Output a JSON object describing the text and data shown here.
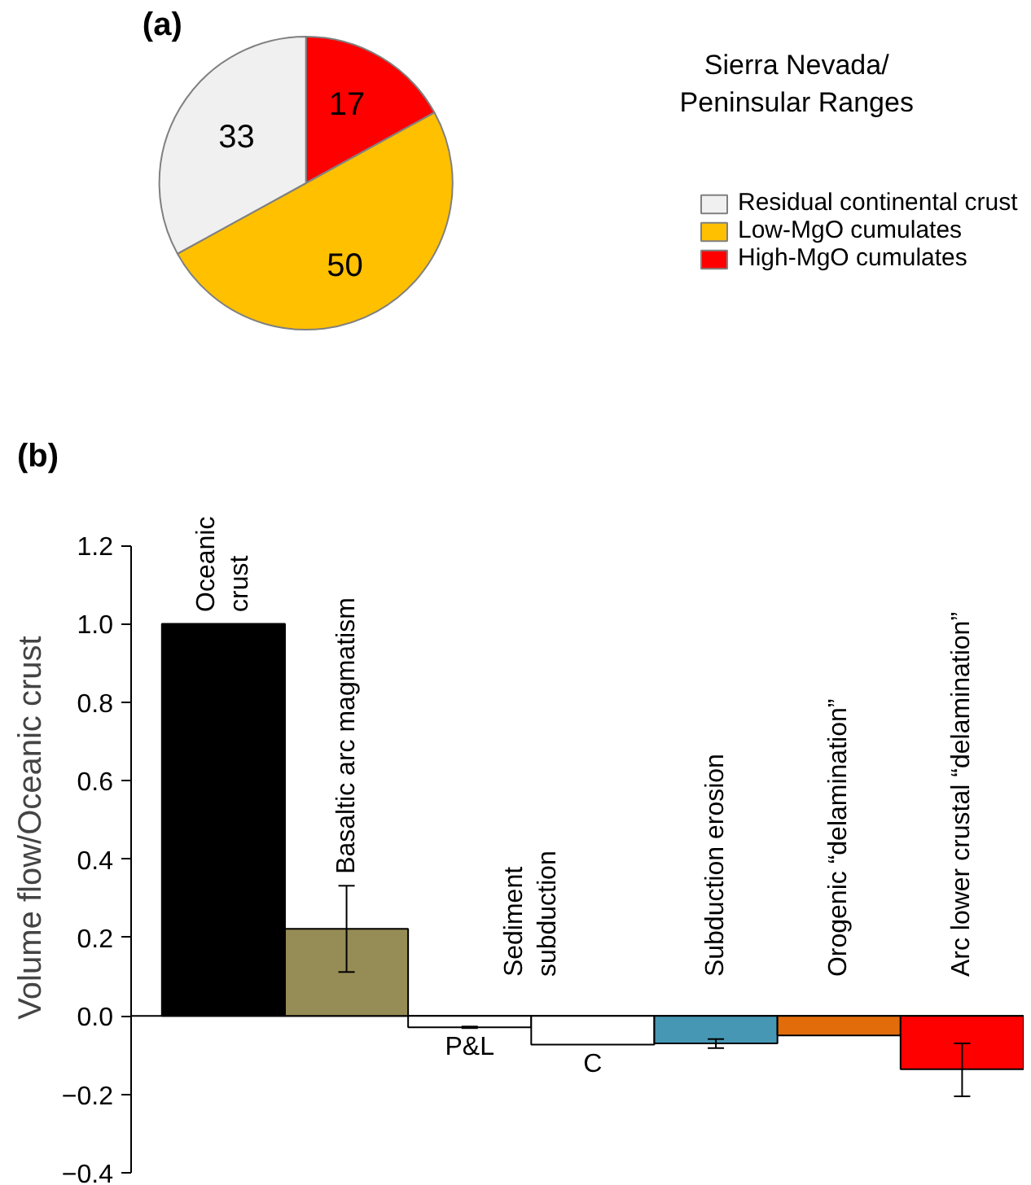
{
  "chart_data": [
    {
      "type": "pie",
      "categories": [
        "High-MgO cumulates",
        "Low-MgO cumulates",
        "Residual continental crust"
      ],
      "values": [
        17,
        50,
        33
      ],
      "colors": [
        "#ff0000",
        "#ffc000",
        "#f0f0f0"
      ],
      "data_labels": true,
      "legend": "right",
      "legend_title": "Sierra Nevada/\nPeninsular Ranges",
      "annotations": [
        "(a)"
      ]
    },
    {
      "type": "bar",
      "categories": [
        "Oceanic crust",
        "Basaltic arc magmatism",
        "P&L",
        "C",
        "Subduction erosion",
        "Orogenic “delamination”",
        "Arc lower crustal “delamination”"
      ],
      "values": [
        1.0,
        0.222,
        -0.029,
        -0.073,
        -0.07,
        -0.05,
        -0.136
      ],
      "colors": [
        "#000000",
        "#968c55",
        "#ffffff",
        "#ffffff",
        "#4697b4",
        "#e36c0a",
        "#ff0000"
      ],
      "errors": [
        null,
        [
          0.112,
          0.332
        ],
        [
          -0.031,
          -0.027
        ],
        null,
        [
          -0.082,
          -0.059
        ],
        null,
        [
          -0.205,
          -0.07
        ]
      ],
      "ylim": [
        -0.4,
        1.2
      ],
      "yticks": [
        {
          "value": -0.4,
          "label": "−0.4"
        },
        {
          "value": -0.2,
          "label": "−0.2"
        },
        {
          "value": 0,
          "label": "0.0"
        },
        {
          "value": 0.2,
          "label": "0.2"
        },
        {
          "value": 0.4,
          "label": "0.4"
        },
        {
          "value": 0.6,
          "label": "0.6"
        },
        {
          "value": 0.8,
          "label": "0.8"
        },
        {
          "value": 1,
          "label": "1.0"
        },
        {
          "value": 1.2,
          "label": "1.2"
        }
      ],
      "ylabel": "Volume flow/Oceanic crust",
      "grid": false,
      "legend": false,
      "annotations": [
        "(b)",
        "Sediment subduction"
      ]
    }
  ]
}
